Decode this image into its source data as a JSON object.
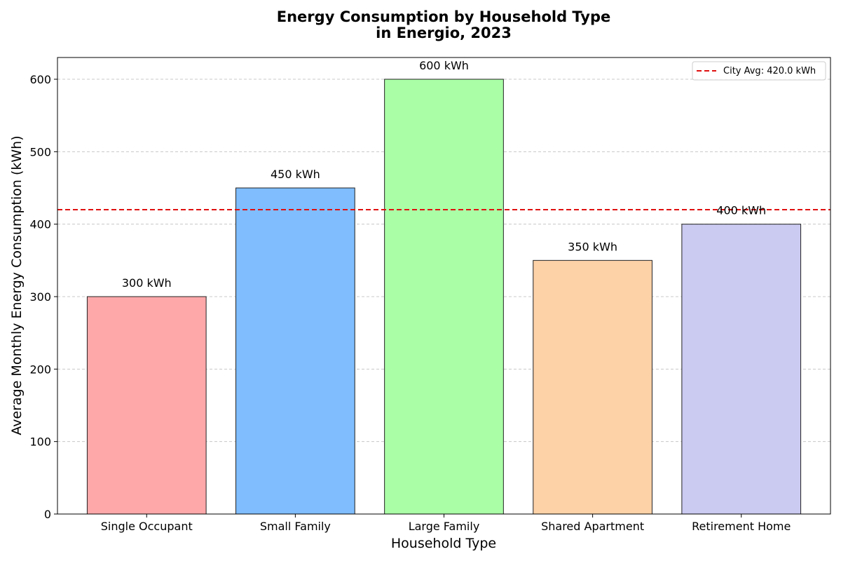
{
  "chart_data": {
    "type": "bar",
    "title_lines": [
      "Energy Consumption by Household Type",
      "in Energio, 2023"
    ],
    "xlabel": "Household Type",
    "ylabel": "Average Monthly Energy Consumption (kWh)",
    "categories": [
      "Single Occupant",
      "Small Family",
      "Large Family",
      "Shared Apartment",
      "Retirement Home"
    ],
    "values": [
      300,
      450,
      600,
      350,
      400
    ],
    "value_labels": [
      "300 kWh",
      "450 kWh",
      "600 kWh",
      "350 kWh",
      "400 kWh"
    ],
    "colors": [
      "#ffa8aa",
      "#7fbdff",
      "#aaffa6",
      "#fdd2a7",
      "#cbcaf1"
    ],
    "bar_edge_color": "#222222",
    "ylim": [
      0,
      630
    ],
    "yticks": [
      0,
      100,
      200,
      300,
      400,
      500,
      600
    ],
    "ytick_labels": [
      "0",
      "100",
      "200",
      "300",
      "400",
      "500",
      "600"
    ],
    "grid": {
      "axis": "y",
      "style": "dashed",
      "color": "#c8c8c8"
    },
    "reference_line": {
      "value": 420.0,
      "label": "City Avg: 420.0 kWh",
      "color": "#e01010",
      "style": "dashed"
    },
    "legend": {
      "placement": "top-right"
    }
  }
}
